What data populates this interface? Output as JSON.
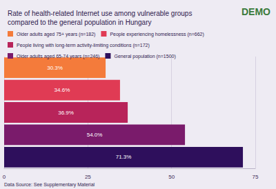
{
  "chart_data": {
    "type": "bar",
    "title": "Rate of health-related Internet use among vulnerable groups compared to the general population in Hungary",
    "orientation": "horizontal",
    "series": [
      {
        "name": "Older adults aged 75+ years (n=182)",
        "color": "#f47b3b",
        "values": [
          30.3
        ],
        "value_labels": [
          "30.3%"
        ]
      },
      {
        "name": "People experiencing homelessness (n=662)",
        "color": "#e03b54",
        "values": [
          34.6
        ],
        "value_labels": [
          "34.6%"
        ]
      },
      {
        "name": "People living with long-term activity-limiting conditions (n=172)",
        "color": "#b8245a",
        "values": [
          36.9
        ],
        "value_labels": [
          "36.9%"
        ]
      },
      {
        "name": "Older adults aged 65-74 years (n=246)",
        "color": "#7a1b6b",
        "values": [
          54.0
        ],
        "value_labels": [
          "54.0%"
        ]
      },
      {
        "name": "General population (n=1500)",
        "color": "#2e0f5c",
        "values": [
          71.3
        ],
        "value_labels": [
          "71.3%"
        ]
      }
    ],
    "xlim": [
      0,
      75
    ],
    "xticks": [
      0,
      25,
      50,
      75
    ],
    "grid": true,
    "data_labels": true,
    "tick_labels": "x",
    "legend": "top-left"
  },
  "source": "Data Source: See Supplementary Material",
  "logo": "DEMO"
}
